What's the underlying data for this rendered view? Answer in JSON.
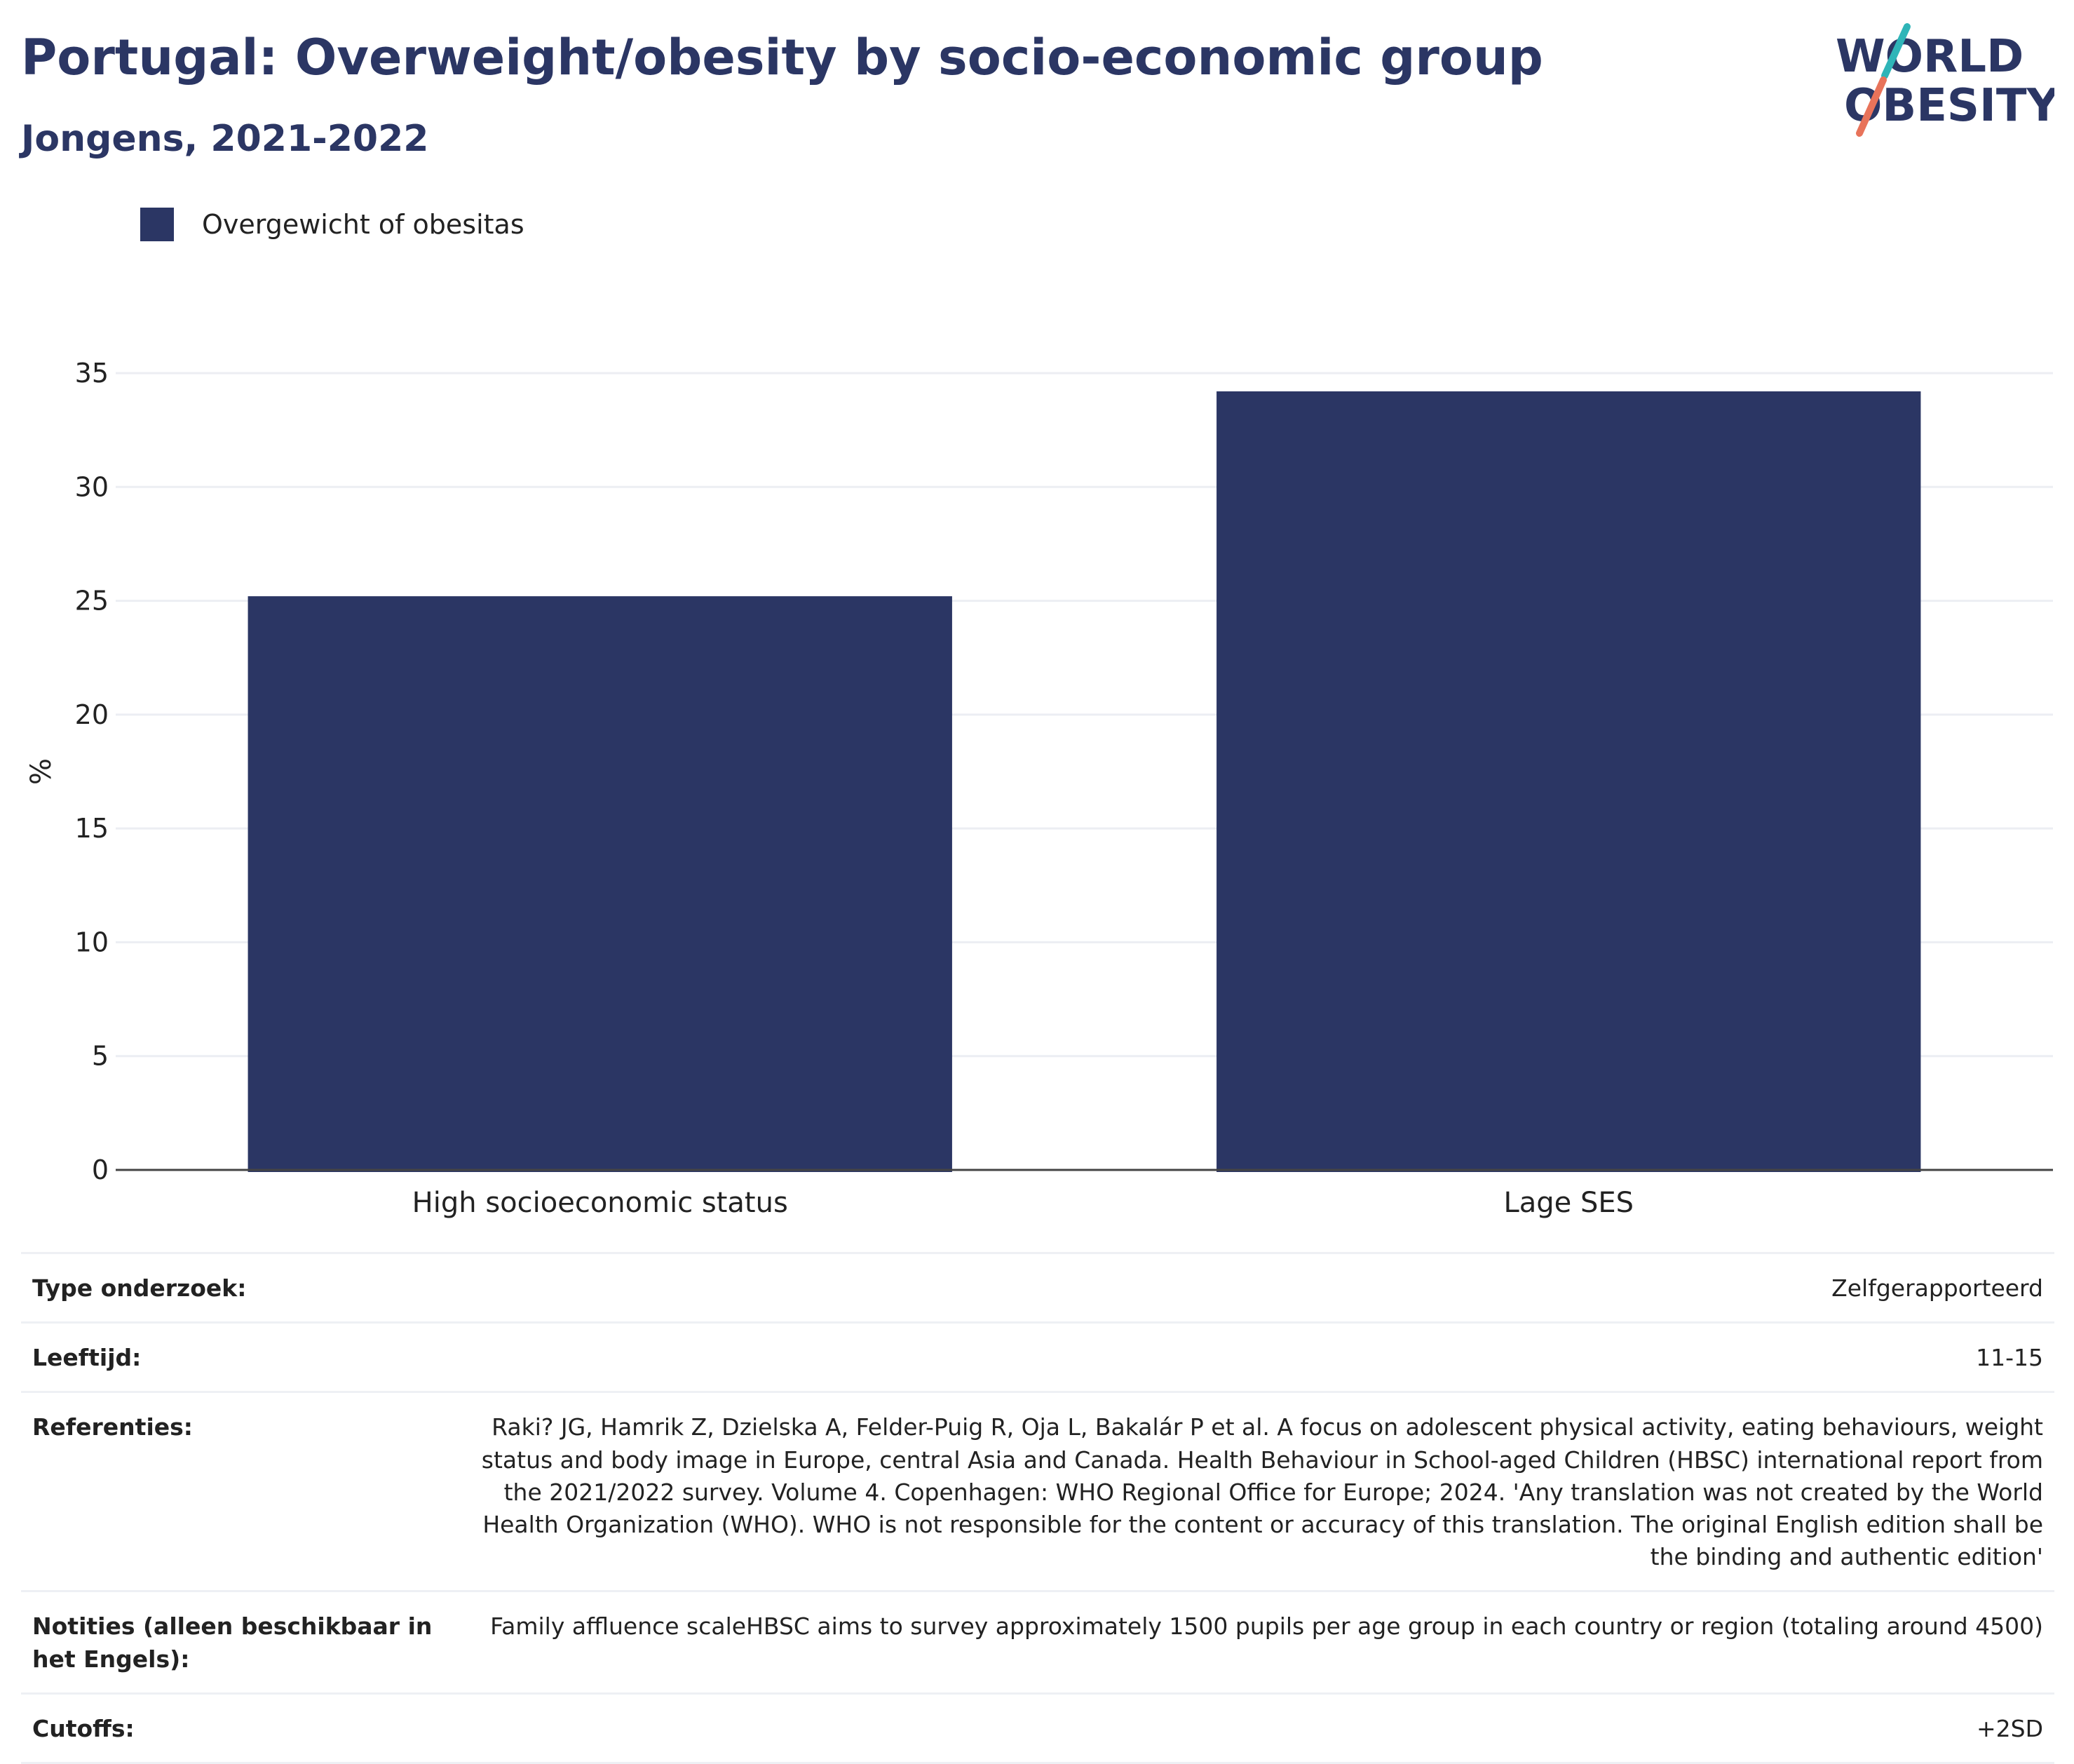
{
  "header": {
    "title": "Portugal: Overweight/obesity by socio-economic group",
    "subtitle": "Jongens, 2021-2022"
  },
  "logo": {
    "line1": "WORLD",
    "line2": "OBESITY",
    "name": "world-obesity-logo"
  },
  "colors": {
    "bar": "#2b3664",
    "accent_teal": "#2fb5b8",
    "accent_coral": "#e8735a",
    "grid": "#eceef3"
  },
  "chart_data": {
    "type": "bar",
    "categories": [
      "High socioeconomic status",
      "Lage SES"
    ],
    "series": [
      {
        "name": "Overgewicht of obesitas",
        "values": [
          25.2,
          34.2
        ]
      }
    ],
    "ylabel": "%",
    "xlabel": "",
    "ylim": [
      0,
      35
    ],
    "yticks": [
      0,
      5,
      10,
      15,
      20,
      25,
      30,
      35
    ],
    "grid": true,
    "legend": "top-left"
  },
  "meta": [
    {
      "label": "Type onderzoek:",
      "value": "Zelfgerapporteerd"
    },
    {
      "label": "Leeftijd:",
      "value": "11-15"
    },
    {
      "label": "Referenties:",
      "value": "Raki? JG, Hamrik Z, Dzielska A, Felder-Puig R, Oja L, Bakalár P et al. A focus on adolescent physical activity, eating behaviours, weight status and body image in Europe, central Asia and Canada. Health Behaviour in School-aged Children (HBSC) international report from the 2021/2022 survey. Volume 4. Copenhagen: WHO Regional Office for Europe; 2024. 'Any translation was not created by the World Health Organization (WHO). WHO is not responsible for the content or accuracy of this translation. The original English edition shall be the binding and authentic edition'"
    },
    {
      "label": "Notities (alleen beschikbaar in het Engels):",
      "value": "Family affluence scaleHBSC aims to survey approximately 1500 pupils per age group in each country or region (totaling around 4500)"
    },
    {
      "label": "Cutoffs:",
      "value": "+2SD"
    }
  ]
}
